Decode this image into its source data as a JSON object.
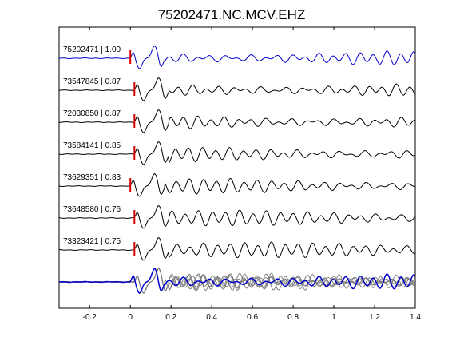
{
  "chart_data": {
    "type": "line",
    "title": "75202471.NC.MCV.EHZ",
    "xlabel": "",
    "ylabel": "",
    "xlim": [
      -0.35,
      1.4
    ],
    "x_ticks": [
      {
        "value": -0.2,
        "label": "-0.2"
      },
      {
        "value": 0,
        "label": "0"
      },
      {
        "value": 0.2,
        "label": "0.2"
      },
      {
        "value": 0.4,
        "label": "0.4"
      },
      {
        "value": 0.6,
        "label": "0.6"
      },
      {
        "value": 0.8,
        "label": "0.8"
      },
      {
        "value": 1.0,
        "label": "1"
      },
      {
        "value": 1.2,
        "label": "1.2"
      },
      {
        "value": 1.4,
        "label": "1.4"
      }
    ],
    "grid": false,
    "series": [
      {
        "label": "75202471 | 1.00",
        "event_id": "75202471",
        "correlation": 1.0,
        "pick_time": 0.0,
        "color": "#0000cc",
        "role": "master"
      },
      {
        "label": "73547845 | 0.87",
        "event_id": "73547845",
        "correlation": 0.87,
        "pick_time": 0.02,
        "color": "#000000",
        "role": "similar"
      },
      {
        "label": "72030850 | 0.87",
        "event_id": "72030850",
        "correlation": 0.87,
        "pick_time": 0.02,
        "color": "#000000",
        "role": "similar"
      },
      {
        "label": "73584141 | 0.85",
        "event_id": "73584141",
        "correlation": 0.85,
        "pick_time": 0.02,
        "color": "#000000",
        "role": "similar"
      },
      {
        "label": "73629351 | 0.83",
        "event_id": "73629351",
        "correlation": 0.83,
        "pick_time": 0.0,
        "color": "#000000",
        "role": "similar"
      },
      {
        "label": "73648580 | 0.76",
        "event_id": "73648580",
        "correlation": 0.76,
        "pick_time": 0.02,
        "color": "#000000",
        "role": "similar"
      },
      {
        "label": "73323421 | 0.75",
        "event_id": "73323421",
        "correlation": 0.75,
        "pick_time": 0.02,
        "color": "#000000",
        "role": "similar"
      }
    ],
    "overlay": {
      "description": "stack",
      "master_color": "#0000cc",
      "others_color": "#808080"
    },
    "pick_marker_color": "#dd0000"
  }
}
